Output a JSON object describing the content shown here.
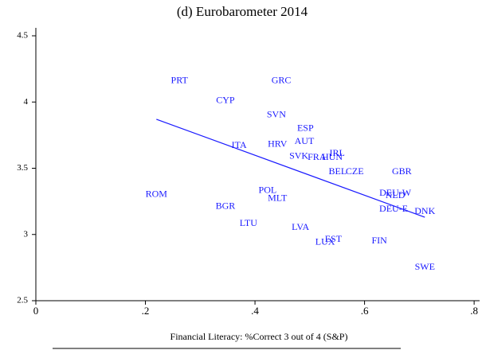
{
  "chart_data": {
    "type": "scatter",
    "title": "(d) Eurobarometer 2014",
    "xlabel": "Financial Literacy: %Correct 3 out of 4 (S&P)",
    "color": "#1a1aff",
    "labels": [
      "PRT",
      "GRC",
      "CYP",
      "SVN",
      "ESP",
      "AUT",
      "ITA",
      "HRV",
      "SVK",
      "FRA",
      "HUN",
      "IRL",
      "BEL",
      "CZE",
      "GBR",
      "POL",
      "ROM",
      "MLT",
      "BGR",
      "DEU-W",
      "NLD",
      "DEU-E",
      "DNK",
      "LTU",
      "LVA",
      "EST",
      "LUX",
      "FIN",
      "SWE"
    ],
    "x": [
      0.262,
      0.448,
      0.346,
      0.439,
      0.492,
      0.49,
      0.371,
      0.441,
      0.48,
      0.513,
      0.541,
      0.55,
      0.551,
      0.582,
      0.668,
      0.423,
      0.22,
      0.441,
      0.346,
      0.656,
      0.656,
      0.653,
      0.71,
      0.388,
      0.483,
      0.543,
      0.528,
      0.627,
      0.71
    ],
    "y": [
      4.16,
      4.16,
      4.01,
      3.9,
      3.8,
      3.7,
      3.67,
      3.68,
      3.59,
      3.58,
      3.58,
      3.61,
      3.47,
      3.47,
      3.47,
      3.33,
      3.3,
      3.27,
      3.21,
      3.31,
      3.29,
      3.19,
      3.17,
      3.08,
      3.05,
      2.96,
      2.94,
      2.95,
      2.75
    ],
    "fit": {
      "x": [
        0.22,
        0.71
      ],
      "y": [
        3.87,
        3.13
      ]
    },
    "xlim": [
      0,
      0.81
    ],
    "ylim": [
      2.5,
      4.56
    ],
    "xticks": [
      0,
      {
        "value": 0.2,
        "label": ".2"
      },
      {
        "value": 0.4,
        "label": ".4"
      },
      {
        "value": 0.6,
        "label": ".6"
      },
      {
        "value": 0.8,
        "label": ".8"
      }
    ],
    "yticks": [
      2.5,
      3,
      3.5,
      4,
      4.5
    ]
  }
}
